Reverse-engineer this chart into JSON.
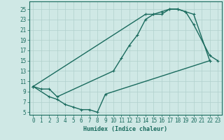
{
  "xlabel": "Humidex (Indice chaleur)",
  "xlim": [
    -0.5,
    23.5
  ],
  "ylim": [
    4.5,
    26.5
  ],
  "yticks": [
    5,
    7,
    9,
    11,
    13,
    15,
    17,
    19,
    21,
    23,
    25
  ],
  "xticks": [
    0,
    1,
    2,
    3,
    4,
    5,
    6,
    7,
    8,
    9,
    10,
    11,
    12,
    13,
    14,
    15,
    16,
    17,
    18,
    19,
    20,
    21,
    22,
    23
  ],
  "bg_color": "#cfe8e5",
  "grid_color": "#b0d0cc",
  "line_color": "#1a6b5e",
  "line1_x": [
    0,
    14,
    15,
    16,
    17,
    18,
    19,
    20,
    22
  ],
  "line1_y": [
    10,
    24,
    24,
    24.5,
    25,
    25,
    24.5,
    24,
    15
  ],
  "line2_x": [
    0,
    1,
    2,
    3,
    10,
    11,
    12,
    13,
    14,
    15,
    16,
    17,
    18,
    19,
    20,
    22,
    23
  ],
  "line2_y": [
    10,
    9.5,
    9.5,
    8,
    13,
    15.5,
    18,
    20,
    23,
    24,
    24,
    25,
    25,
    24.5,
    22,
    16,
    15
  ],
  "line3_x": [
    0,
    2,
    3,
    4,
    5,
    6,
    7,
    8,
    9,
    22
  ],
  "line3_y": [
    10,
    8,
    7.5,
    6.5,
    6,
    5.5,
    5.5,
    5,
    8.5,
    15
  ],
  "markersize": 2.5,
  "linewidth": 1.0
}
